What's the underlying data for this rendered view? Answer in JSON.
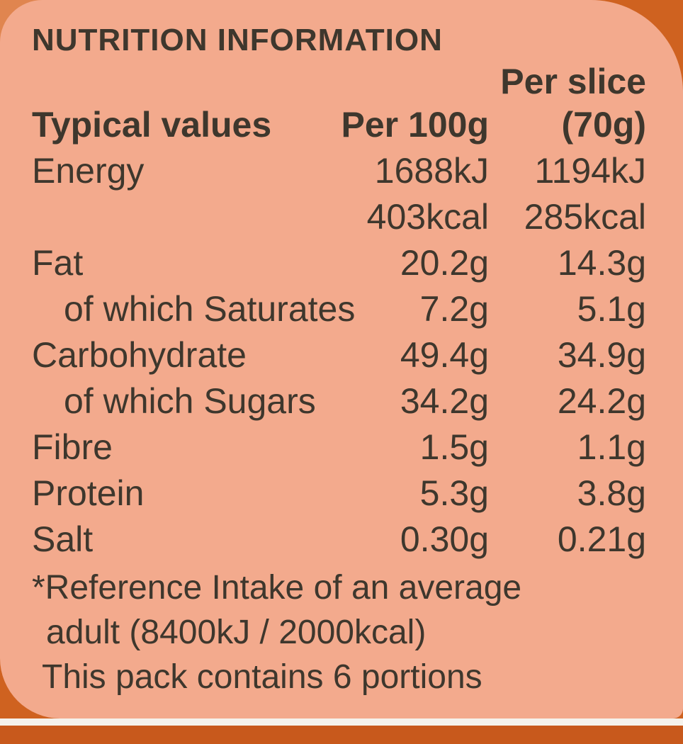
{
  "colors": {
    "background_peach": "#f3aa8d",
    "accent_orange_dark": "#cf6220",
    "accent_orange_light": "#e0854f",
    "bottom_band_orange": "#c8591c",
    "white_strip": "#f5f2ec",
    "text_brown": "#3e372d"
  },
  "nutrition": {
    "title": "NUTRITION INFORMATION",
    "header": {
      "col_values": "Typical values",
      "col_per100": "Per 100g",
      "col_slice_line1": "Per slice",
      "col_slice_line2": "(70g)"
    },
    "rows": [
      {
        "label": "Energy",
        "per100": "1688kJ",
        "per_slice": "1194kJ"
      },
      {
        "label": "",
        "per100": "403kcal",
        "per_slice": "285kcal"
      },
      {
        "label": "Fat",
        "per100": "20.2g",
        "per_slice": "14.3g"
      },
      {
        "label": "of which Saturates",
        "per100": "7.2g",
        "per_slice": "5.1g"
      },
      {
        "label": "Carbohydrate",
        "per100": "49.4g",
        "per_slice": "34.9g"
      },
      {
        "label": "of which Sugars",
        "per100": "34.2g",
        "per_slice": "24.2g"
      },
      {
        "label": "Fibre",
        "per100": "1.5g",
        "per_slice": "1.1g"
      },
      {
        "label": "Protein",
        "per100": "5.3g",
        "per_slice": "3.8g"
      },
      {
        "label": "Salt",
        "per100": "0.30g",
        "per_slice": "0.21g"
      }
    ],
    "footnote": {
      "line1": "*Reference Intake of an average",
      "line2": "adult (8400kJ / 2000kcal)",
      "line3": "This pack contains 6 portions"
    }
  }
}
